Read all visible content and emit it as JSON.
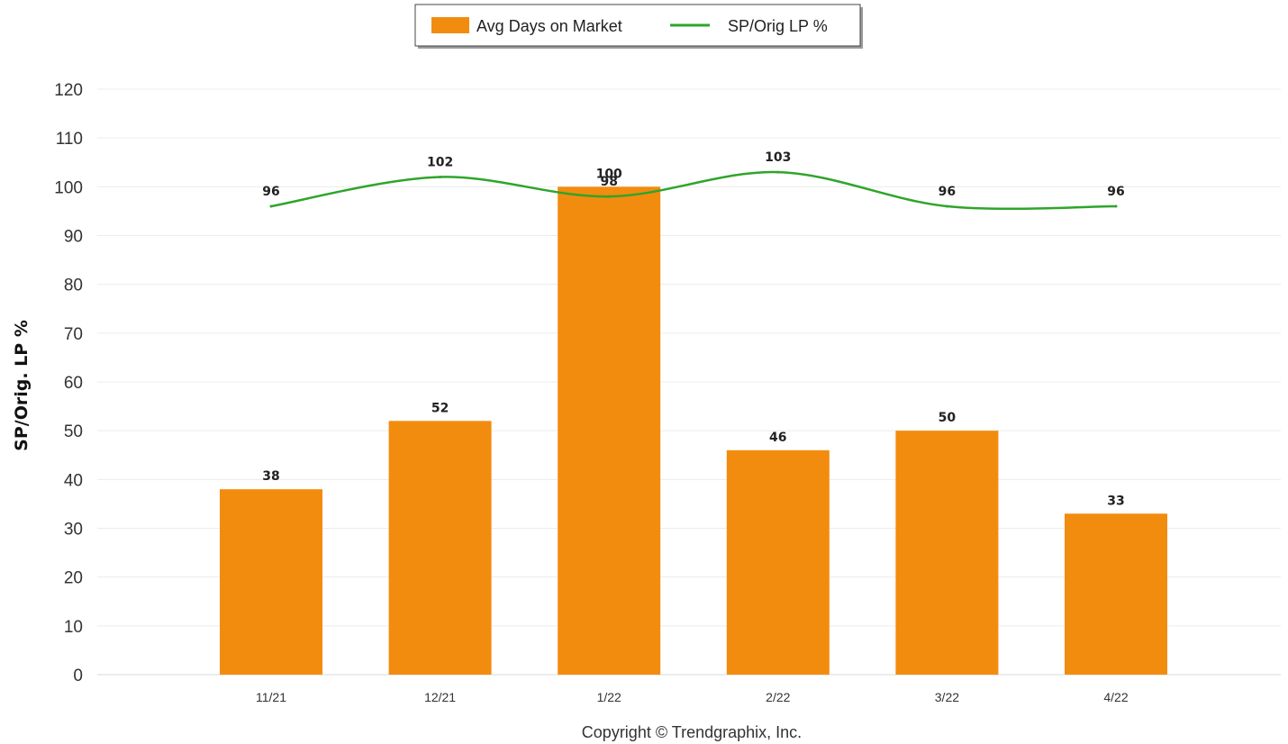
{
  "chart_data": {
    "type": "bar",
    "categories": [
      "11/21",
      "12/21",
      "1/22",
      "2/22",
      "3/22",
      "4/22"
    ],
    "series": [
      {
        "name": "Avg Days on Market",
        "type": "bar",
        "values": [
          38,
          52,
          100,
          46,
          50,
          33
        ],
        "labels": [
          "38",
          "52",
          "100",
          "46",
          "50",
          "33"
        ],
        "color": "#F28C0F"
      },
      {
        "name": "SP/Orig LP %",
        "type": "line",
        "values": [
          96,
          102,
          98,
          103,
          96,
          96
        ],
        "labels": [
          "96",
          "102",
          "98",
          "103",
          "96",
          "96"
        ],
        "color": "#2EA52A"
      }
    ],
    "ylabel": "SP/Orig. LP %",
    "ylim": [
      0,
      120
    ],
    "yticks": [
      0,
      10,
      20,
      30,
      40,
      50,
      60,
      70,
      80,
      90,
      100,
      110,
      120
    ],
    "grid": true,
    "legend_position": "top-center",
    "footer": "Copyright © Trendgraphix, Inc."
  }
}
